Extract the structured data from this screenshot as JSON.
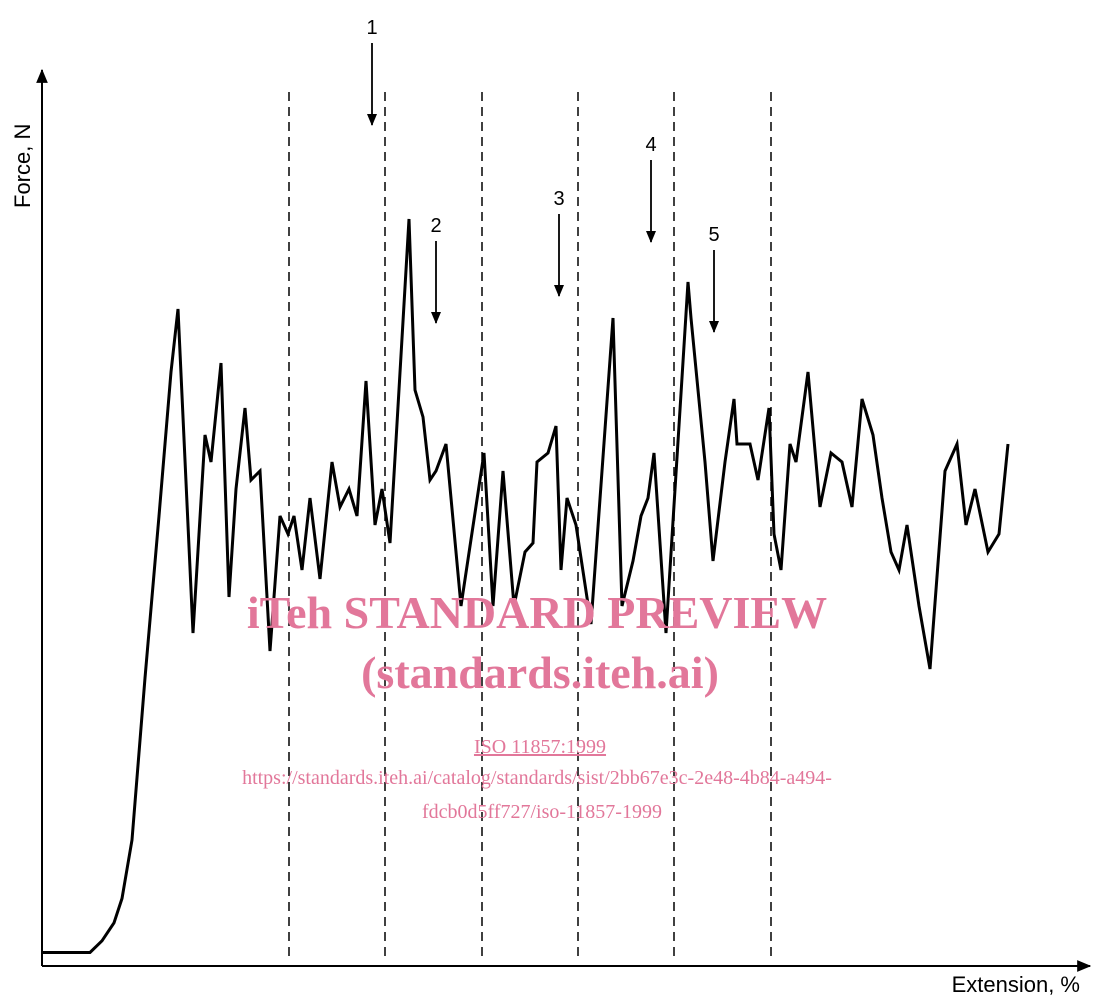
{
  "chart_data": {
    "type": "line",
    "xlabel": "Extension, %",
    "ylabel": "Force, N",
    "grid": false,
    "legend": "none",
    "line_color": "#000000",
    "watermark_color": "#e2779a",
    "series": [
      {
        "values": [
          [
            0.0,
            1.5
          ],
          [
            4.8,
            1.5
          ],
          [
            6.0,
            2.8
          ],
          [
            7.2,
            4.8
          ],
          [
            8.0,
            7.5
          ],
          [
            9.0,
            14
          ],
          [
            10.3,
            32
          ],
          [
            11.7,
            50
          ],
          [
            12.9,
            66
          ],
          [
            13.6,
            73
          ],
          [
            15.1,
            37
          ],
          [
            16.3,
            59
          ],
          [
            16.9,
            56
          ],
          [
            17.9,
            67
          ],
          [
            18.7,
            41
          ],
          [
            19.4,
            53
          ],
          [
            20.3,
            62
          ],
          [
            20.9,
            54
          ],
          [
            21.8,
            55
          ],
          [
            22.8,
            35
          ],
          [
            23.8,
            50
          ],
          [
            24.6,
            48
          ],
          [
            25.2,
            50
          ],
          [
            26.0,
            44
          ],
          [
            26.8,
            52
          ],
          [
            27.8,
            43
          ],
          [
            29.0,
            56
          ],
          [
            29.8,
            51
          ],
          [
            30.7,
            53
          ],
          [
            31.5,
            50
          ],
          [
            32.4,
            65
          ],
          [
            33.3,
            49
          ],
          [
            34.0,
            53
          ],
          [
            34.8,
            47
          ],
          [
            36.7,
            83
          ],
          [
            37.3,
            64
          ],
          [
            38.1,
            61
          ],
          [
            38.8,
            54
          ],
          [
            39.4,
            55
          ],
          [
            40.4,
            58
          ],
          [
            41.9,
            40
          ],
          [
            44.2,
            57
          ],
          [
            45.1,
            40
          ],
          [
            46.1,
            55
          ],
          [
            47.2,
            40
          ],
          [
            48.3,
            46
          ],
          [
            49.1,
            47
          ],
          [
            49.5,
            56
          ],
          [
            50.6,
            57
          ],
          [
            51.4,
            60
          ],
          [
            51.9,
            44
          ],
          [
            52.5,
            52
          ],
          [
            53.4,
            49
          ],
          [
            54.9,
            38
          ],
          [
            57.1,
            72
          ],
          [
            58.0,
            40
          ],
          [
            59.1,
            45
          ],
          [
            59.9,
            50
          ],
          [
            60.6,
            52
          ],
          [
            61.2,
            57
          ],
          [
            62.4,
            37
          ],
          [
            64.6,
            76
          ],
          [
            64.9,
            72
          ],
          [
            66.3,
            56
          ],
          [
            67.1,
            45
          ],
          [
            68.3,
            56
          ],
          [
            69.2,
            63
          ],
          [
            69.5,
            58
          ],
          [
            70.8,
            58
          ],
          [
            71.6,
            54
          ],
          [
            72.7,
            62
          ],
          [
            73.2,
            48
          ],
          [
            73.9,
            44
          ],
          [
            74.8,
            58
          ],
          [
            75.4,
            56
          ],
          [
            76.6,
            66
          ],
          [
            77.8,
            51
          ],
          [
            78.9,
            57
          ],
          [
            80.0,
            56
          ],
          [
            81.0,
            51
          ],
          [
            82.0,
            63
          ],
          [
            83.1,
            59
          ],
          [
            84.0,
            52
          ],
          [
            84.9,
            46
          ],
          [
            85.7,
            44
          ],
          [
            86.5,
            49
          ],
          [
            87.7,
            40
          ],
          [
            88.8,
            33
          ],
          [
            90.3,
            55
          ],
          [
            91.5,
            58
          ],
          [
            92.4,
            49
          ],
          [
            93.3,
            53
          ],
          [
            94.6,
            46
          ],
          [
            95.7,
            48
          ],
          [
            96.6,
            58
          ]
        ]
      }
    ],
    "dividers_x": [
      24.7,
      34.3,
      44.0,
      53.6,
      63.2,
      72.9
    ],
    "annotations": [
      {
        "label": "1",
        "x": 33.0,
        "y": 93
      },
      {
        "label": "2",
        "x": 39.4,
        "y": 71
      },
      {
        "label": "3",
        "x": 51.7,
        "y": 74
      },
      {
        "label": "4",
        "x": 60.9,
        "y": 80
      },
      {
        "label": "5",
        "x": 67.2,
        "y": 70
      }
    ]
  },
  "watermark": {
    "title": "iTeh STANDARD PREVIEW",
    "subtitle": "(standards.iteh.ai)",
    "link": "ISO 11857:1999",
    "url_line1": "https://standards.iteh.ai/catalog/standards/sist/2bb67e3c-2e48-4b84-a494-",
    "url_line2": "fdcb0d5ff727/iso-11857-1999"
  }
}
